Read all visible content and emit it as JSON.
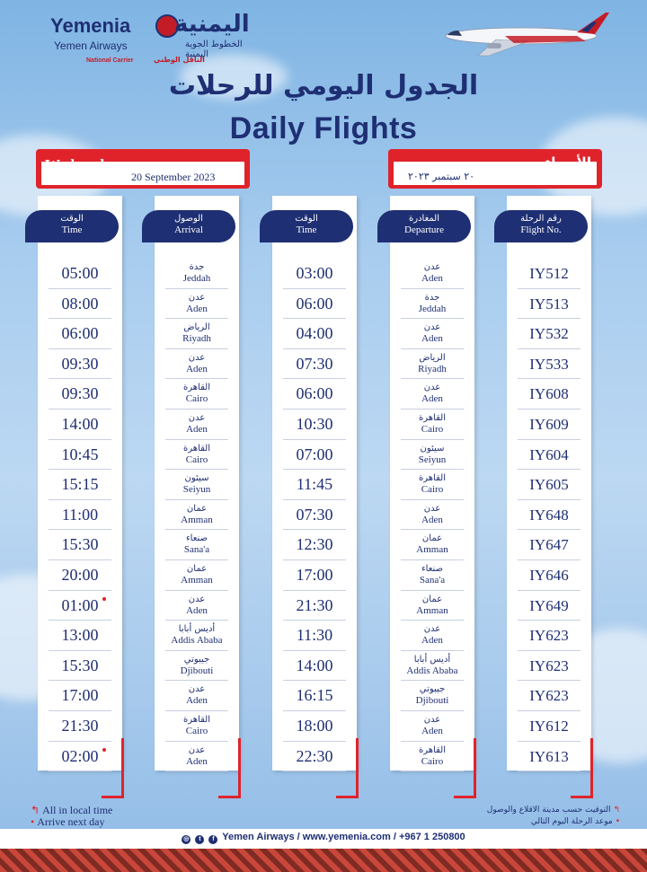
{
  "brand": {
    "name_en": "Yemenia",
    "name_ar": "اليمنية",
    "sub_en": "Yemen Airways",
    "sub_ar": "الخطوط الجوية اليمنية",
    "national_en": "National Carrier",
    "national_ar": "الناقل الوطني"
  },
  "title_ar": "الجدول اليومي للرحلات",
  "title_en": "Daily Flights",
  "date_left": {
    "day": "Wednesday",
    "date": "20 September 2023"
  },
  "date_right": {
    "day": "الأربعاء",
    "date": "٢٠ سبتمبر ٢٠٢٣"
  },
  "columns": {
    "arr_time": {
      "ar": "الوقت",
      "en": "Time"
    },
    "arrival": {
      "ar": "الوصول",
      "en": "Arrival"
    },
    "dep_time": {
      "ar": "الوقت",
      "en": "Time"
    },
    "departure": {
      "ar": "المغادرة",
      "en": "Departure"
    },
    "flight_no": {
      "ar": "رقم الرحلة",
      "en": "Flight No."
    }
  },
  "flights": [
    {
      "flight": "IY512",
      "dep_ar": "عدن",
      "dep_en": "Aden",
      "dep_time": "03:00",
      "arr_ar": "جدة",
      "arr_en": "Jeddah",
      "arr_time": "05:00",
      "next_day": false
    },
    {
      "flight": "IY513",
      "dep_ar": "جدة",
      "dep_en": "Jeddah",
      "dep_time": "06:00",
      "arr_ar": "عدن",
      "arr_en": "Aden",
      "arr_time": "08:00",
      "next_day": false
    },
    {
      "flight": "IY532",
      "dep_ar": "عدن",
      "dep_en": "Aden",
      "dep_time": "04:00",
      "arr_ar": "الرياض",
      "arr_en": "Riyadh",
      "arr_time": "06:00",
      "next_day": false
    },
    {
      "flight": "IY533",
      "dep_ar": "الرياض",
      "dep_en": "Riyadh",
      "dep_time": "07:30",
      "arr_ar": "عدن",
      "arr_en": "Aden",
      "arr_time": "09:30",
      "next_day": false
    },
    {
      "flight": "IY608",
      "dep_ar": "عدن",
      "dep_en": "Aden",
      "dep_time": "06:00",
      "arr_ar": "القاهرة",
      "arr_en": "Cairo",
      "arr_time": "09:30",
      "next_day": false
    },
    {
      "flight": "IY609",
      "dep_ar": "القاهرة",
      "dep_en": "Cairo",
      "dep_time": "10:30",
      "arr_ar": "عدن",
      "arr_en": "Aden",
      "arr_time": "14:00",
      "next_day": false
    },
    {
      "flight": "IY604",
      "dep_ar": "سيئون",
      "dep_en": "Seiyun",
      "dep_time": "07:00",
      "arr_ar": "القاهرة",
      "arr_en": "Cairo",
      "arr_time": "10:45",
      "next_day": false
    },
    {
      "flight": "IY605",
      "dep_ar": "القاهرة",
      "dep_en": "Cairo",
      "dep_time": "11:45",
      "arr_ar": "سيئون",
      "arr_en": "Seiyun",
      "arr_time": "15:15",
      "next_day": false
    },
    {
      "flight": "IY648",
      "dep_ar": "عدن",
      "dep_en": "Aden",
      "dep_time": "07:30",
      "arr_ar": "عمان",
      "arr_en": "Amman",
      "arr_time": "11:00",
      "next_day": false
    },
    {
      "flight": "IY647",
      "dep_ar": "عمان",
      "dep_en": "Amman",
      "dep_time": "12:30",
      "arr_ar": "صنعاء",
      "arr_en": "Sana'a",
      "arr_time": "15:30",
      "next_day": false
    },
    {
      "flight": "IY646",
      "dep_ar": "صنعاء",
      "dep_en": "Sana'a",
      "dep_time": "17:00",
      "arr_ar": "عمان",
      "arr_en": "Amman",
      "arr_time": "20:00",
      "next_day": false
    },
    {
      "flight": "IY649",
      "dep_ar": "عمان",
      "dep_en": "Amman",
      "dep_time": "21:30",
      "arr_ar": "عدن",
      "arr_en": "Aden",
      "arr_time": "01:00",
      "next_day": true
    },
    {
      "flight": "IY623",
      "dep_ar": "عدن",
      "dep_en": "Aden",
      "dep_time": "11:30",
      "arr_ar": "أديس أبابا",
      "arr_en": "Addis Ababa",
      "arr_time": "13:00",
      "next_day": false
    },
    {
      "flight": "IY623",
      "dep_ar": "أديس أبابا",
      "dep_en": "Addis Ababa",
      "dep_time": "14:00",
      "arr_ar": "جيبوتي",
      "arr_en": "Djibouti",
      "arr_time": "15:30",
      "next_day": false
    },
    {
      "flight": "IY623",
      "dep_ar": "جيبوتي",
      "dep_en": "Djibouti",
      "dep_time": "16:15",
      "arr_ar": "عدن",
      "arr_en": "Aden",
      "arr_time": "17:00",
      "next_day": false
    },
    {
      "flight": "IY612",
      "dep_ar": "عدن",
      "dep_en": "Aden",
      "dep_time": "18:00",
      "arr_ar": "القاهرة",
      "arr_en": "Cairo",
      "arr_time": "21:30",
      "next_day": false
    },
    {
      "flight": "IY613",
      "dep_ar": "القاهرة",
      "dep_en": "Cairo",
      "dep_time": "22:30",
      "arr_ar": "عدن",
      "arr_en": "Aden",
      "arr_time": "02:00",
      "next_day": true
    }
  ],
  "notes_en": [
    "All in local time",
    "Arrive next day"
  ],
  "notes_ar": [
    "التوقيت حسب مدينة الاقلاع والوصول",
    "موعد الرحلة اليوم التالي"
  ],
  "contact": "Yemen Airways / www.yemenia.com / +967 1 250800",
  "colors": {
    "navy": "#1f2f73",
    "red": "#e0232b",
    "sky": "#a9cdef"
  }
}
